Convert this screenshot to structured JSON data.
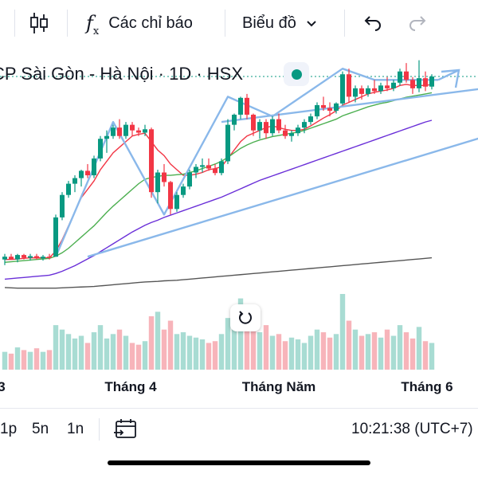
{
  "toolbar": {
    "indicators_label": "Các chỉ báo",
    "chart_type_label": "Biểu đồ",
    "icons": [
      "candles-icon",
      "function-icon",
      "chevron-down-icon",
      "undo-icon",
      "redo-icon"
    ]
  },
  "symbol": {
    "title": "CP Sài Gòn - Hà Nội · 1D · HSX",
    "status_color": "#089981"
  },
  "colors": {
    "up": "#089981",
    "down": "#f23645",
    "up_volume": "#a8dcd3",
    "down_volume": "#f7b4ba",
    "drawing": "#8ab8ea",
    "ma_red": "#f23645",
    "ma_green": "#4caf50",
    "ma_purple": "#6a2fd8",
    "ma_gray": "#555555",
    "last_price_line": "#089981"
  },
  "chart_data": {
    "type": "candlestick",
    "x_axis_labels": [
      "3",
      "Tháng 4",
      "Tháng Năm",
      "Tháng 6"
    ],
    "candles": [
      [
        92,
        93,
        91,
        92.5
      ],
      [
        92.5,
        93,
        92,
        92
      ],
      [
        92,
        93,
        91.5,
        92.8
      ],
      [
        92.8,
        93,
        92,
        92.3
      ],
      [
        92.3,
        93,
        91.8,
        92.6
      ],
      [
        92.6,
        93,
        92,
        92.2
      ],
      [
        92.2,
        92.8,
        91.8,
        92.5
      ],
      [
        92.5,
        93,
        92,
        92.4
      ],
      [
        92.5,
        100,
        92.5,
        99.5
      ],
      [
        99.5,
        104,
        99,
        103.5
      ],
      [
        103.5,
        106,
        103,
        105.5
      ],
      [
        105.5,
        107,
        104,
        106.5
      ],
      [
        106.5,
        108,
        105,
        107.8
      ],
      [
        107.8,
        109,
        106.5,
        107
      ],
      [
        107,
        110.5,
        106.5,
        110
      ],
      [
        110,
        114,
        109.5,
        113.5
      ],
      [
        113.5,
        115,
        111,
        114
      ],
      [
        114,
        116,
        113.5,
        115.5
      ],
      [
        115.5,
        117,
        113.5,
        114
      ],
      [
        114,
        116.5,
        113.5,
        116
      ],
      [
        116,
        116.5,
        114,
        115
      ],
      [
        115,
        115.5,
        114,
        114.6
      ],
      [
        114.6,
        116,
        114,
        115.2
      ],
      [
        115.2,
        115.5,
        103,
        104
      ],
      [
        104,
        108,
        102,
        107.5
      ],
      [
        107.5,
        109,
        105,
        105.8
      ],
      [
        105.8,
        106,
        100,
        101
      ],
      [
        101,
        104,
        100.5,
        103.5
      ],
      [
        103.5,
        105.5,
        103,
        105
      ],
      [
        105,
        108,
        104.5,
        107.5
      ],
      [
        107.5,
        109,
        106.5,
        108.5
      ],
      [
        108.5,
        110,
        107.5,
        108.8
      ],
      [
        108.8,
        110,
        107.8,
        108.2
      ],
      [
        108.2,
        109,
        107,
        107.4
      ],
      [
        107.4,
        110,
        107,
        109.5
      ],
      [
        109.5,
        117,
        109,
        116
      ],
      [
        116,
        118,
        115,
        117.8
      ],
      [
        117.8,
        121,
        117,
        120.8
      ],
      [
        120.8,
        121.5,
        117,
        117.8
      ],
      [
        117.8,
        118,
        114,
        115
      ],
      [
        115,
        117,
        113.5,
        116.5
      ],
      [
        116.5,
        117,
        113.5,
        114.5
      ],
      [
        114.5,
        117.5,
        114,
        117
      ],
      [
        117,
        118,
        114.5,
        115
      ],
      [
        115,
        116,
        113.5,
        114
      ],
      [
        114,
        115,
        113,
        114.5
      ],
      [
        114.5,
        116,
        114,
        115.5
      ],
      [
        115.5,
        117,
        114.5,
        116.5
      ],
      [
        116.5,
        118,
        116,
        117.5
      ],
      [
        117.5,
        120,
        117,
        119.5
      ],
      [
        119.5,
        121,
        118.5,
        119
      ],
      [
        119,
        120,
        117.5,
        118.5
      ],
      [
        118.5,
        120,
        118,
        119.8
      ],
      [
        119.8,
        125.5,
        119.5,
        125
      ],
      [
        125,
        126,
        120,
        121
      ],
      [
        121,
        123,
        120,
        122.5
      ],
      [
        122.5,
        123,
        120.5,
        121.5
      ],
      [
        121.5,
        123,
        121,
        122.5
      ],
      [
        122.5,
        124,
        121.5,
        122
      ],
      [
        122,
        123.5,
        121.5,
        123
      ],
      [
        123,
        124.5,
        122,
        122.5
      ],
      [
        122.5,
        124,
        122,
        123.5
      ],
      [
        123.5,
        126,
        123,
        125.5
      ],
      [
        125.5,
        127,
        123.5,
        124
      ],
      [
        124,
        124.5,
        121.5,
        122.5
      ],
      [
        122.5,
        127.5,
        121.8,
        124.3
      ],
      [
        124.3,
        125.5,
        122,
        122.8
      ],
      [
        122.8,
        125,
        122.3,
        124.6
      ]
    ],
    "volumes": [
      20,
      18,
      25,
      22,
      20,
      24,
      20,
      22,
      50,
      45,
      40,
      35,
      38,
      30,
      42,
      50,
      35,
      40,
      45,
      38,
      30,
      28,
      32,
      60,
      65,
      45,
      55,
      40,
      42,
      38,
      36,
      34,
      30,
      32,
      40,
      58,
      66,
      80,
      60,
      48,
      42,
      50,
      38,
      40,
      32,
      36,
      34,
      30,
      38,
      45,
      42,
      36,
      40,
      85,
      55,
      45,
      38,
      40,
      42,
      36,
      45,
      38,
      50,
      42,
      35,
      48,
      32,
      30
    ],
    "moving_averages": [
      {
        "values": [
          92,
          92,
          92.1,
          92.2,
          92.3,
          92.3,
          92.3,
          92.3,
          93.5,
          95.5,
          98,
          100.5,
          103,
          104.5,
          106,
          108,
          109.5,
          111,
          112,
          113,
          114,
          114.3,
          114.5,
          113,
          111.5,
          110.5,
          109,
          108,
          107,
          107,
          107.2,
          107.5,
          108,
          108.2,
          108.5,
          110,
          111.5,
          113,
          114,
          114.5,
          115,
          115.5,
          115.8,
          115.5,
          115.2,
          115,
          115,
          115.2,
          115.8,
          116.5,
          117.2,
          117.8,
          118.5,
          119.5,
          120,
          120.5,
          121,
          121.5,
          121.8,
          122,
          122.2,
          122.5,
          123,
          123.2,
          123,
          123,
          123,
          123.2
        ]
      },
      {
        "values": [
          91.5,
          91.6,
          91.7,
          91.8,
          91.9,
          92,
          92.1,
          92.2,
          92.6,
          93.2,
          94,
          95,
          96,
          97,
          98,
          99.2,
          100.4,
          101.5,
          102.5,
          103.5,
          104.5,
          105.5,
          106.3,
          106.6,
          106.8,
          107,
          107,
          107.1,
          107.2,
          107.5,
          107.8,
          108.2,
          108.6,
          109,
          109.5,
          110.2,
          111,
          111.8,
          112.4,
          112.9,
          113.3,
          113.6,
          113.9,
          114.1,
          114.3,
          114.5,
          114.7,
          115,
          115.4,
          115.8,
          116.2,
          116.6,
          117,
          117.6,
          118,
          118.4,
          118.8,
          119.2,
          119.5,
          119.8,
          120,
          120.3,
          120.6,
          120.9,
          121.1,
          121.3,
          121.5,
          121.7
        ]
      },
      {
        "values": [
          88.5,
          88.6,
          88.7,
          88.8,
          88.9,
          89,
          89.1,
          89.2,
          89.5,
          89.9,
          90.4,
          90.9,
          91.5,
          92.1,
          92.7,
          93.4,
          94.1,
          94.8,
          95.5,
          96.2,
          96.9,
          97.5,
          98.1,
          98.6,
          99,
          99.5,
          99.9,
          100.3,
          100.7,
          101.1,
          101.5,
          101.9,
          102.3,
          102.7,
          103.1,
          103.6,
          104.1,
          104.6,
          105.1,
          105.6,
          106.1,
          106.5,
          106.9,
          107.3,
          107.7,
          108.1,
          108.5,
          108.9,
          109.3,
          109.7,
          110.1,
          110.5,
          110.9,
          111.3,
          111.7,
          112.1,
          112.5,
          112.9,
          113.3,
          113.7,
          114.1,
          114.5,
          114.9,
          115.3,
          115.7,
          116.1,
          116.5,
          116.8
        ]
      },
      {
        "values": [
          87,
          86.95,
          86.9,
          86.9,
          86.9,
          86.9,
          86.9,
          86.9,
          86.9,
          86.95,
          87,
          87.05,
          87.1,
          87.15,
          87.2,
          87.3,
          87.4,
          87.5,
          87.6,
          87.7,
          87.8,
          87.9,
          88,
          88.05,
          88.1,
          88.2,
          88.25,
          88.3,
          88.4,
          88.5,
          88.6,
          88.7,
          88.8,
          88.9,
          89,
          89.1,
          89.2,
          89.3,
          89.4,
          89.5,
          89.6,
          89.7,
          89.8,
          89.9,
          90,
          90.1,
          90.2,
          90.3,
          90.4,
          90.5,
          90.6,
          90.7,
          90.8,
          90.9,
          91,
          91.1,
          91.2,
          91.3,
          91.4,
          91.5,
          91.6,
          91.7,
          91.8,
          91.9,
          92,
          92.1,
          92.2,
          92.3
        ]
      }
    ],
    "last_price": 124.6,
    "trend_channel": {
      "upper": [
        [
          34,
          116.5
        ],
        [
          96,
          125.5
        ]
      ],
      "lower": [
        [
          13,
          92.5
        ],
        [
          96,
          121
        ]
      ]
    },
    "zigzag": [
      [
        8,
        92.5
      ],
      [
        17,
        116.5
      ],
      [
        25,
        100
      ],
      [
        35,
        121
      ],
      [
        42,
        117.5
      ],
      [
        53,
        126
      ],
      [
        58,
        124
      ],
      [
        68,
        124
      ]
    ]
  },
  "bottom_bar": {
    "intervals": [
      "1p",
      "5n",
      "1n"
    ],
    "time": "10:21:38 (UTC+7)"
  }
}
